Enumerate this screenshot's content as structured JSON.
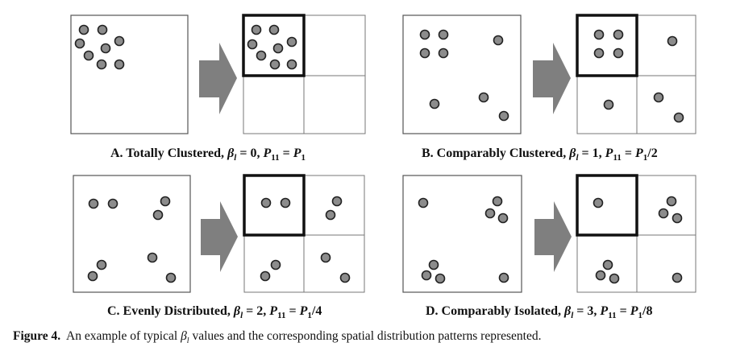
{
  "panels": [
    {
      "id": "A",
      "caption": {
        "prefix": "A. Totally Clustered, ",
        "beta_symbol": "β",
        "beta_sub": "l",
        "beta_eq": " = 0, ",
        "p_symbol": "P",
        "p_sub": "11",
        "p_eq": " = ",
        "rhs_symbol": "P",
        "rhs_sub": "1",
        "rhs_tail": ""
      }
    },
    {
      "id": "B",
      "caption": {
        "prefix": "B. Comparably Clustered, ",
        "beta_symbol": "β",
        "beta_sub": "l",
        "beta_eq": " = 1, ",
        "p_symbol": "P",
        "p_sub": "11",
        "p_eq": " = ",
        "rhs_symbol": "P",
        "rhs_sub": "1",
        "rhs_tail": "/2"
      }
    },
    {
      "id": "C",
      "caption": {
        "prefix": "C. Evenly Distributed, ",
        "beta_symbol": "β",
        "beta_sub": "l",
        "beta_eq": " = 2, ",
        "p_symbol": "P",
        "p_sub": "11",
        "p_eq": " = ",
        "rhs_symbol": "P",
        "rhs_sub": "1",
        "rhs_tail": "/4"
      }
    },
    {
      "id": "D",
      "caption": {
        "prefix": "D. Comparably Isolated, ",
        "beta_symbol": "β",
        "beta_sub": "l",
        "beta_eq": " = 3, ",
        "p_symbol": "P",
        "p_sub": "11",
        "p_eq": " = ",
        "rhs_symbol": "P",
        "rhs_sub": "1",
        "rhs_tail": "/8"
      }
    }
  ],
  "figure_caption": {
    "label": "Figure 4.",
    "text_before": "  An example of typical ",
    "beta_symbol": "β",
    "beta_sub": "l",
    "text_after": " values and the corresponding spatial distribution patterns represented."
  },
  "colors": {
    "dot_fill": "#8c8c8c",
    "dot_stroke": "#222222",
    "arrow": "#7f7f7f",
    "box_stroke": "#555555",
    "highlight_stroke": "#111111"
  }
}
